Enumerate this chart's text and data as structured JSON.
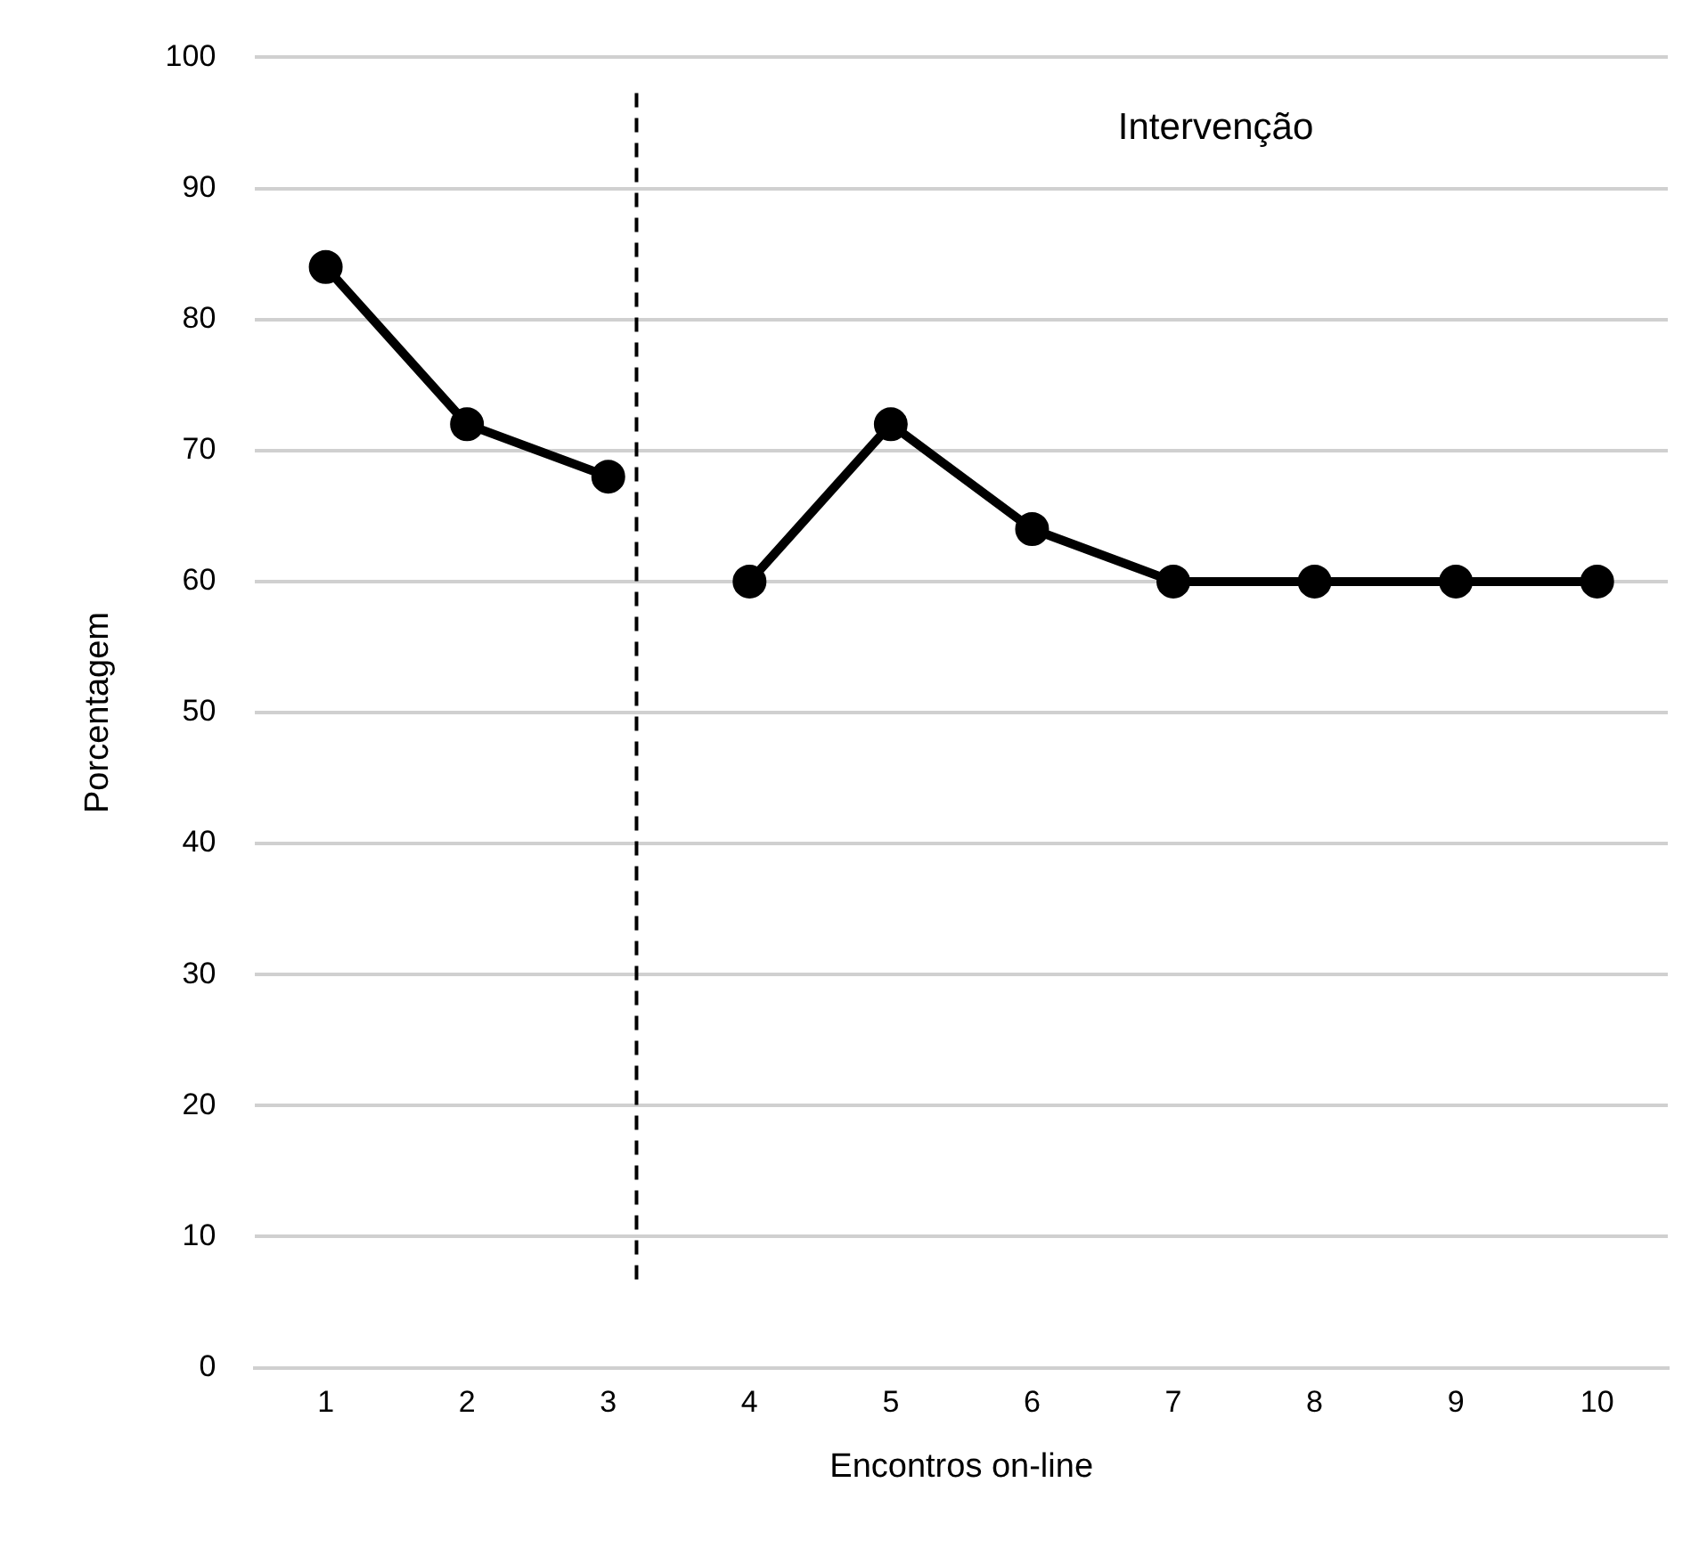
{
  "chart_data": {
    "type": "line",
    "xlabel": "Encontros on-line",
    "ylabel": "Porcentagem",
    "x": [
      1,
      2,
      3,
      4,
      5,
      6,
      7,
      8,
      9,
      10
    ],
    "series": [
      {
        "color": "#000000",
        "values": [
          84,
          72,
          68,
          null,
          null,
          null,
          null,
          null,
          null,
          null
        ]
      },
      {
        "color": "#000000",
        "values": [
          null,
          null,
          null,
          60,
          72,
          64,
          60,
          60,
          60,
          60
        ]
      }
    ],
    "xlim": [
      0.5,
      10.5
    ],
    "xticks": [
      1,
      2,
      3,
      4,
      5,
      6,
      7,
      8,
      9,
      10
    ],
    "ylim": [
      0,
      100
    ],
    "yticks": [
      0,
      10,
      20,
      30,
      40,
      50,
      60,
      70,
      80,
      90,
      100
    ],
    "grid": "y",
    "legend": false,
    "marker": "circle",
    "line_style": "solid",
    "ref_lines": [
      {
        "axis": "x",
        "value": 3.2,
        "color": "#000000",
        "line_style": "dashed"
      }
    ],
    "annotations": [
      "Intervenção"
    ]
  }
}
